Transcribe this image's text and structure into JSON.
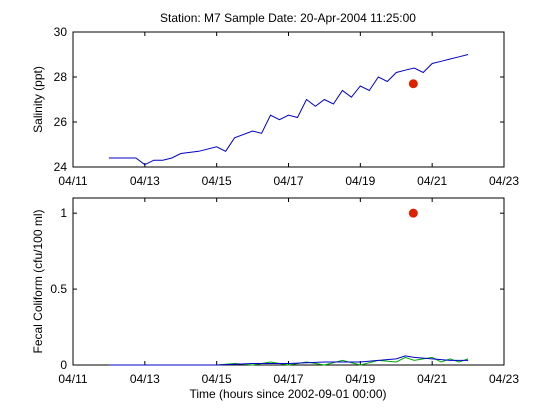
{
  "figure": {
    "title": "Station: M7  Sample Date: 20-Apr-2004 11:25:00",
    "xlabel": "Time (hours since 2002-09-01 00:00)"
  },
  "chart_data": [
    {
      "type": "line",
      "ylabel": "Salinity (ppt)",
      "xlim": [
        "2004-04-11",
        "2004-04-23"
      ],
      "ylim": [
        24,
        30
      ],
      "x_ticks": [
        "04/11",
        "04/13",
        "04/15",
        "04/17",
        "04/19",
        "04/21",
        "04/23"
      ],
      "y_ticks": [
        "24",
        "26",
        "28",
        "30"
      ],
      "grid": false,
      "series": [
        {
          "color": "#0000cc",
          "x": [
            "2004-04-12T00:00",
            "2004-04-12T12:00",
            "2004-04-12T18:00",
            "2004-04-13T00:00",
            "2004-04-13T06:00",
            "2004-04-13T12:00",
            "2004-04-13T18:00",
            "2004-04-14T00:00",
            "2004-04-14T12:00",
            "2004-04-15T00:00",
            "2004-04-15T06:00",
            "2004-04-15T12:00",
            "2004-04-16T00:00",
            "2004-04-16T06:00",
            "2004-04-16T12:00",
            "2004-04-16T18:00",
            "2004-04-17T00:00",
            "2004-04-17T06:00",
            "2004-04-17T12:00",
            "2004-04-17T18:00",
            "2004-04-18T00:00",
            "2004-04-18T06:00",
            "2004-04-18T12:00",
            "2004-04-18T18:00",
            "2004-04-19T00:00",
            "2004-04-19T06:00",
            "2004-04-19T12:00",
            "2004-04-19T18:00",
            "2004-04-20T00:00",
            "2004-04-20T06:00",
            "2004-04-20T12:00",
            "2004-04-20T18:00",
            "2004-04-21T00:00",
            "2004-04-21T06:00",
            "2004-04-21T12:00",
            "2004-04-21T18:00",
            "2004-04-22T00:00"
          ],
          "y": [
            24.4,
            24.4,
            24.4,
            24.1,
            24.3,
            24.3,
            24.4,
            24.6,
            24.7,
            24.9,
            24.7,
            25.3,
            25.6,
            25.5,
            26.3,
            26.1,
            26.3,
            26.2,
            27.0,
            26.7,
            27.0,
            26.8,
            27.4,
            27.1,
            27.6,
            27.4,
            28.0,
            27.8,
            28.2,
            28.3,
            28.4,
            28.2,
            28.6,
            28.7,
            28.8,
            28.9,
            29.0
          ]
        }
      ],
      "points": [
        {
          "x": "2004-04-20T11:25",
          "y": 27.7,
          "color": "#dd2200"
        }
      ]
    },
    {
      "type": "line",
      "ylabel": "Fecal Coliform (cfu/100 ml)",
      "xlim": [
        "2004-04-11",
        "2004-04-23"
      ],
      "ylim": [
        0,
        1.1
      ],
      "x_ticks": [
        "04/11",
        "04/13",
        "04/15",
        "04/17",
        "04/19",
        "04/21",
        "04/23"
      ],
      "y_ticks": [
        "0",
        "0.5",
        "1"
      ],
      "grid": false,
      "series": [
        {
          "color": "#00aa00",
          "x": [
            "2004-04-12T00:00",
            "2004-04-15T00:00",
            "2004-04-15T12:00",
            "2004-04-16T00:00",
            "2004-04-16T12:00",
            "2004-04-17T00:00",
            "2004-04-17T12:00",
            "2004-04-18T00:00",
            "2004-04-18T12:00",
            "2004-04-19T00:00",
            "2004-04-19T12:00",
            "2004-04-20T00:00",
            "2004-04-20T06:00",
            "2004-04-20T12:00",
            "2004-04-21T00:00",
            "2004-04-21T06:00",
            "2004-04-21T12:00",
            "2004-04-21T18:00",
            "2004-04-22T00:00"
          ],
          "y": [
            0.0,
            0.0,
            0.01,
            0.0,
            0.02,
            0.0,
            0.02,
            0.0,
            0.03,
            0.0,
            0.03,
            0.02,
            0.05,
            0.03,
            0.05,
            0.02,
            0.04,
            0.02,
            0.04
          ]
        },
        {
          "color": "#0000cc",
          "x": [
            "2004-04-12T00:00",
            "2004-04-15T00:00",
            "2004-04-16T00:00",
            "2004-04-17T00:00",
            "2004-04-18T00:00",
            "2004-04-19T00:00",
            "2004-04-19T12:00",
            "2004-04-20T00:00",
            "2004-04-20T06:00",
            "2004-04-20T12:00",
            "2004-04-21T00:00",
            "2004-04-21T12:00",
            "2004-04-22T00:00"
          ],
          "y": [
            0.0,
            0.0,
            0.01,
            0.01,
            0.02,
            0.02,
            0.03,
            0.04,
            0.06,
            0.05,
            0.04,
            0.03,
            0.03
          ]
        }
      ],
      "points": [
        {
          "x": "2004-04-20T11:25",
          "y": 1.0,
          "color": "#dd2200"
        }
      ]
    }
  ]
}
